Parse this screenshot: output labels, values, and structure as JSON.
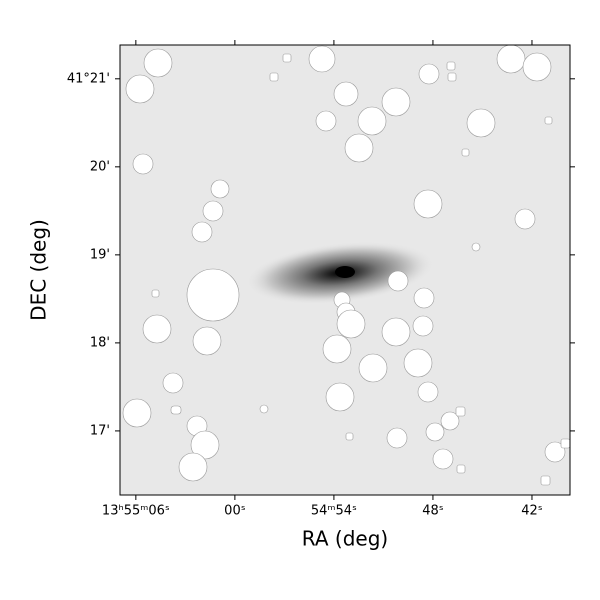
{
  "chart_data": {
    "type": "image",
    "xlabel": "RA (deg)",
    "ylabel": "DEC (deg)",
    "xlim": [
      208.779,
      208.6654
    ],
    "ylim": [
      41.2712,
      41.3564
    ],
    "xticks": [
      {
        "value": 208.775,
        "label": "13ʰ55ᵐ06ˢ"
      },
      {
        "value": 208.75,
        "label": "00ˢ"
      },
      {
        "value": 208.725,
        "label": "54ᵐ54ˢ"
      },
      {
        "value": 208.7,
        "label": "48ˢ"
      },
      {
        "value": 208.675,
        "label": "42ˢ"
      }
    ],
    "yticks": [
      {
        "value": 41.35,
        "label": "41°21'"
      },
      {
        "value": 41.333333,
        "label": "20'"
      },
      {
        "value": 41.316667,
        "label": "19'"
      },
      {
        "value": 41.3,
        "label": "18'"
      },
      {
        "value": 41.283333,
        "label": "17'"
      }
    ]
  }
}
